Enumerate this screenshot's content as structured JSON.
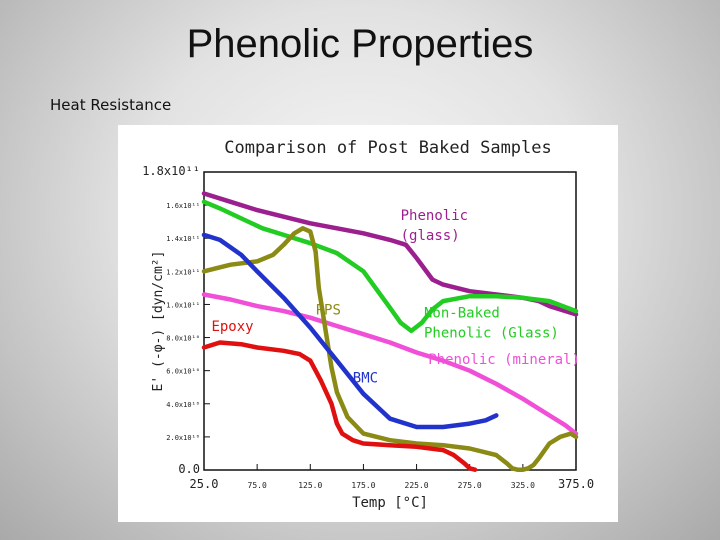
{
  "slide": {
    "title": "Phenolic Properties",
    "subtitle": "Heat Resistance"
  },
  "chart_data": {
    "type": "line",
    "title": "Comparison of Post Baked Samples",
    "xlabel": "Temp [°C]",
    "ylabel": "E' (-φ-) [dyn/cm²]",
    "xlim": [
      25,
      375
    ],
    "ylim": [
      0,
      180000000000.0
    ],
    "x_ticks": [
      "25.0",
      "75.0",
      "125.0",
      "175.0",
      "225.0",
      "275.0",
      "325.0",
      "375.0"
    ],
    "y_ticks": [
      "0.0",
      "2.0x10¹⁰",
      "4.0x10¹⁰",
      "6.0x10¹⁰",
      "8.0x10¹⁰",
      "1.0x10¹¹",
      "1.2x10¹¹",
      "1.4x10¹¹",
      "1.6x10¹¹",
      "1.8x10¹¹"
    ],
    "series": [
      {
        "name": "Phenolic (glass)",
        "label_lines": [
          "Phenolic",
          "(glass)"
        ],
        "color": "#9c1f8f",
        "x": [
          25,
          50,
          75,
          100,
          125,
          150,
          175,
          200,
          215,
          225,
          240,
          250,
          275,
          300,
          325,
          340,
          350,
          375
        ],
        "y": [
          167000000000.0,
          162000000000.0,
          157000000000.0,
          153000000000.0,
          149000000000.0,
          146000000000.0,
          143000000000.0,
          139000000000.0,
          136000000000.0,
          128000000000.0,
          115000000000.0,
          112000000000.0,
          108000000000.0,
          106000000000.0,
          104000000000.0,
          102000000000.0,
          99000000000.0,
          94000000000.0
        ]
      },
      {
        "name": "Non-Baked Phenolic (Glass)",
        "label_lines": [
          "Non-Baked",
          "Phenolic (Glass)"
        ],
        "color": "#22cc22",
        "x": [
          25,
          40,
          60,
          80,
          100,
          125,
          150,
          175,
          200,
          210,
          220,
          230,
          240,
          250,
          275,
          300,
          325,
          350,
          375
        ],
        "y": [
          162000000000.0,
          158000000000.0,
          152000000000.0,
          146000000000.0,
          142000000000.0,
          137000000000.0,
          131000000000.0,
          120000000000.0,
          98000000000.0,
          89000000000.0,
          84000000000.0,
          89000000000.0,
          97000000000.0,
          102000000000.0,
          105000000000.0,
          105000000000.0,
          104000000000.0,
          102000000000.0,
          96000000000.0
        ]
      },
      {
        "name": "Phenolic (mineral)",
        "label_lines": [
          "Phenolic (mineral)"
        ],
        "color": "#f050d8",
        "x": [
          25,
          50,
          75,
          100,
          125,
          150,
          175,
          200,
          225,
          250,
          275,
          300,
          325,
          350,
          365,
          375
        ],
        "y": [
          106000000000.0,
          103000000000.0,
          99000000000.0,
          96000000000.0,
          92000000000.0,
          87000000000.0,
          82000000000.0,
          77000000000.0,
          71000000000.0,
          66000000000.0,
          60000000000.0,
          52000000000.0,
          43000000000.0,
          33000000000.0,
          27000000000.0,
          22000000000.0
        ]
      },
      {
        "name": "PPS",
        "label_lines": [
          "PPS"
        ],
        "color": "#8a8a14",
        "x": [
          25,
          50,
          75,
          90,
          100,
          110,
          118,
          125,
          130,
          133,
          136,
          140,
          145,
          150,
          160,
          175,
          200,
          225,
          250,
          275,
          300,
          310,
          315,
          320,
          325,
          330,
          335,
          340,
          350,
          360,
          370,
          375
        ],
        "y": [
          120000000000.0,
          124000000000.0,
          126000000000.0,
          130000000000.0,
          136000000000.0,
          143000000000.0,
          146000000000.0,
          144000000000.0,
          132000000000.0,
          110000000000.0,
          98000000000.0,
          82000000000.0,
          62000000000.0,
          47000000000.0,
          32000000000.0,
          22000000000.0,
          18000000000.0,
          16000000000.0,
          15000000000.0,
          13000000000.0,
          9000000000.0,
          4000000000.0,
          1000000000.0,
          200000000.0,
          200000000.0,
          1000000000.0,
          3000000000.0,
          7000000000.0,
          16000000000.0,
          20000000000.0,
          22000000000.0,
          20000000000.0
        ]
      },
      {
        "name": "BMC",
        "label_lines": [
          "BMC"
        ],
        "color": "#2233cc",
        "x": [
          25,
          40,
          60,
          75,
          100,
          125,
          150,
          175,
          200,
          225,
          250,
          275,
          290,
          300
        ],
        "y": [
          142000000000.0,
          139000000000.0,
          130000000000.0,
          120000000000.0,
          104000000000.0,
          86000000000.0,
          66000000000.0,
          46000000000.0,
          31000000000.0,
          26000000000.0,
          26000000000.0,
          28000000000.0,
          30000000000.0,
          33000000000.0
        ]
      },
      {
        "name": "Epoxy",
        "label_lines": [
          "Epoxy"
        ],
        "color": "#e01010",
        "x": [
          25,
          40,
          60,
          75,
          100,
          115,
          125,
          135,
          145,
          150,
          155,
          165,
          175,
          200,
          225,
          250,
          260,
          270,
          275,
          280
        ],
        "y": [
          74000000000.0,
          77000000000.0,
          76000000000.0,
          74000000000.0,
          72000000000.0,
          70000000000.0,
          66000000000.0,
          54000000000.0,
          40000000000.0,
          28000000000.0,
          22000000000.0,
          18000000000.0,
          16000000000.0,
          15000000000.0,
          14000000000.0,
          12000000000.0,
          9000000000.0,
          4000000000.0,
          1000000000.0,
          200000000.0
        ]
      }
    ]
  }
}
